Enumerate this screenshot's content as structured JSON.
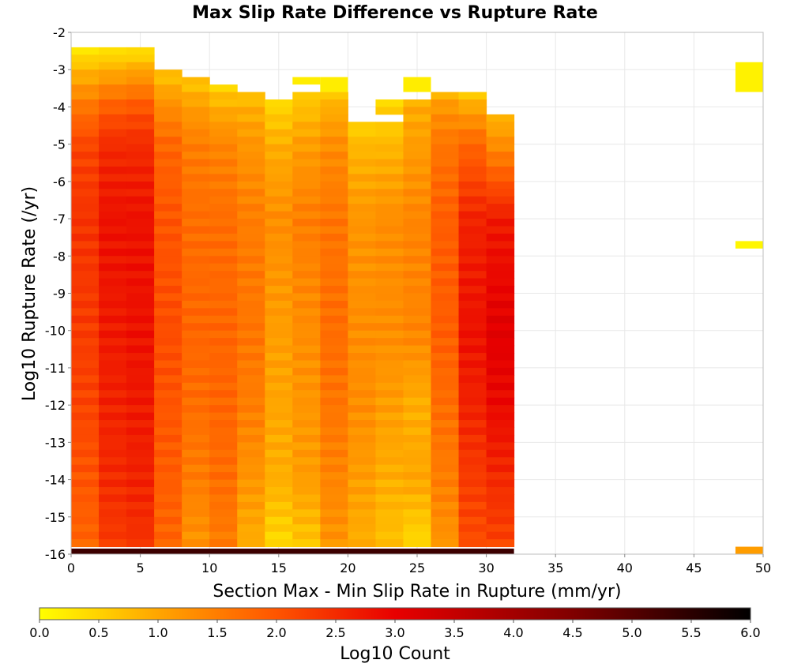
{
  "chart_data": {
    "type": "heatmap",
    "title": "Max Slip Rate Difference vs Rupture Rate",
    "xlabel": "Section Max - Min Slip Rate in Rupture (mm/yr)",
    "ylabel": "Log10 Rupture Rate (/yr)",
    "xlim": [
      0,
      50
    ],
    "ylim": [
      -16,
      -2
    ],
    "x_ticks": [
      0,
      5,
      10,
      15,
      20,
      25,
      30,
      35,
      40,
      45,
      50
    ],
    "y_ticks": [
      -16,
      -15,
      -14,
      -13,
      -12,
      -11,
      -10,
      -9,
      -8,
      -7,
      -6,
      -5,
      -4,
      -3,
      -2
    ],
    "x_bin_width": 2,
    "y_bin_height": 0.2,
    "grid": true,
    "colorbar": {
      "label": "Log10 Count",
      "range": [
        0.0,
        6.0
      ],
      "ticks": [
        "0.0",
        "0.5",
        "1.0",
        "1.5",
        "2.0",
        "2.5",
        "3.0",
        "3.5",
        "4.0",
        "4.5",
        "5.0",
        "5.5",
        "6.0"
      ],
      "colors": [
        "#ffff00",
        "#ffa500",
        "#ff5500",
        "#e80000",
        "#800000",
        "#000000"
      ]
    },
    "columns": [
      {
        "x0": 0,
        "y_top": -2.4,
        "profile": [
          [
            -2.4,
            0.15
          ],
          [
            -3,
            0.8
          ],
          [
            -4,
            1.6
          ],
          [
            -5,
            2.2
          ],
          [
            -7,
            2.4
          ],
          [
            -10,
            2.3
          ],
          [
            -12,
            2.2
          ],
          [
            -14,
            2.0
          ],
          [
            -15.8,
            1.8
          ]
        ]
      },
      {
        "x0": 2,
        "y_top": -2.4,
        "profile": [
          [
            -2.4,
            0.2
          ],
          [
            -3,
            0.9
          ],
          [
            -4,
            1.9
          ],
          [
            -5,
            2.5
          ],
          [
            -7,
            2.8
          ],
          [
            -10,
            2.7
          ],
          [
            -12,
            2.6
          ],
          [
            -14,
            2.5
          ],
          [
            -15.8,
            2.3
          ]
        ]
      },
      {
        "x0": 4,
        "y_top": -2.4,
        "profile": [
          [
            -2.4,
            0.2
          ],
          [
            -3,
            1.0
          ],
          [
            -4,
            2.0
          ],
          [
            -5,
            2.5
          ],
          [
            -7,
            2.8
          ],
          [
            -10,
            2.8
          ],
          [
            -12,
            2.7
          ],
          [
            -14,
            2.6
          ],
          [
            -15.8,
            2.4
          ]
        ]
      },
      {
        "x0": 6,
        "y_top": -3.0,
        "profile": [
          [
            -3,
            0.6
          ],
          [
            -4,
            1.3
          ],
          [
            -5,
            1.8
          ],
          [
            -7,
            2.0
          ],
          [
            -10,
            2.1
          ],
          [
            -12,
            2.0
          ],
          [
            -14,
            1.9
          ],
          [
            -15.8,
            1.8
          ]
        ]
      },
      {
        "x0": 8,
        "y_top": -3.2,
        "profile": [
          [
            -3.2,
            0.6
          ],
          [
            -4,
            1.1
          ],
          [
            -5,
            1.5
          ],
          [
            -7,
            1.7
          ],
          [
            -10,
            1.8
          ],
          [
            -12,
            1.7
          ],
          [
            -14,
            1.5
          ],
          [
            -15.8,
            1.2
          ]
        ]
      },
      {
        "x0": 10,
        "y_top": -3.2,
        "profile": [
          [
            -3.2,
            0.3
          ],
          [
            -4,
            0.9
          ],
          [
            -5,
            1.4
          ],
          [
            -7,
            1.7
          ],
          [
            -10,
            1.8
          ],
          [
            -12,
            1.8
          ],
          [
            -14,
            1.7
          ],
          [
            -15.8,
            1.5
          ]
        ]
      },
      {
        "x0": 12,
        "y_top": -3.6,
        "profile": [
          [
            -3.6,
            0.6
          ],
          [
            -4,
            0.9
          ],
          [
            -5,
            1.2
          ],
          [
            -7,
            1.5
          ],
          [
            -10,
            1.6
          ],
          [
            -12,
            1.5
          ],
          [
            -14,
            1.2
          ],
          [
            -15.8,
            0.9
          ]
        ]
      },
      {
        "x0": 14,
        "y_top": -3.8,
        "profile": [
          [
            -3.8,
            0.3
          ],
          [
            -4,
            0.5
          ],
          [
            -5,
            0.9
          ],
          [
            -7,
            1.3
          ],
          [
            -10,
            1.1
          ],
          [
            -12,
            1.0
          ],
          [
            -14,
            0.9
          ],
          [
            -15.8,
            0.4
          ]
        ]
      },
      {
        "x0": 16,
        "y_top": -3.6,
        "profile": [
          [
            -3.6,
            0.6
          ],
          [
            -4,
            0.7
          ],
          [
            -5,
            1.1
          ],
          [
            -7,
            1.5
          ],
          [
            -10,
            1.3
          ],
          [
            -12,
            1.2
          ],
          [
            -14,
            1.1
          ],
          [
            -15.8,
            0.6
          ]
        ]
      },
      {
        "x0": 18,
        "y_top": -3.6,
        "profile": [
          [
            -3.6,
            0.6
          ],
          [
            -4,
            0.9
          ],
          [
            -5,
            1.3
          ],
          [
            -7,
            1.6
          ],
          [
            -10,
            1.7
          ],
          [
            -12,
            1.6
          ],
          [
            -14,
            1.4
          ],
          [
            -15.8,
            1.2
          ]
        ]
      },
      {
        "x0": 20,
        "y_top": -4.2,
        "profile": [
          [
            -4.2,
            0.3
          ],
          [
            -5,
            0.8
          ],
          [
            -7,
            1.2
          ],
          [
            -10,
            1.3
          ],
          [
            -12,
            1.3
          ],
          [
            -14,
            1.1
          ],
          [
            -15.8,
            0.9
          ]
        ]
      },
      {
        "x0": 22,
        "y_top": -3.8,
        "profile": [
          [
            -3.8,
            0.5
          ],
          [
            -4.4,
            0.5
          ],
          [
            -5,
            0.8
          ],
          [
            -7,
            1.3
          ],
          [
            -10,
            1.3
          ],
          [
            -12,
            1.1
          ],
          [
            -14,
            0.9
          ],
          [
            -15.8,
            0.7
          ]
        ]
      },
      {
        "x0": 24,
        "y_top": -3.8,
        "profile": [
          [
            -3.8,
            0.9
          ],
          [
            -5,
            1.1
          ],
          [
            -7,
            1.4
          ],
          [
            -10,
            1.4
          ],
          [
            -12,
            0.9
          ],
          [
            -14,
            1.0
          ],
          [
            -15.8,
            0.4
          ]
        ]
      },
      {
        "x0": 26,
        "y_top": -3.6,
        "profile": [
          [
            -3.6,
            0.8
          ],
          [
            -4,
            1.2
          ],
          [
            -5,
            1.6
          ],
          [
            -7,
            1.9
          ],
          [
            -10,
            1.9
          ],
          [
            -12,
            1.7
          ],
          [
            -14,
            1.5
          ],
          [
            -15.8,
            1.2
          ]
        ]
      },
      {
        "x0": 28,
        "y_top": -3.6,
        "profile": [
          [
            -3.6,
            0.5
          ],
          [
            -4,
            1.0
          ],
          [
            -5,
            1.8
          ],
          [
            -7,
            2.6
          ],
          [
            -10,
            2.8
          ],
          [
            -12,
            2.6
          ],
          [
            -14,
            2.3
          ],
          [
            -15.8,
            2.1
          ]
        ]
      },
      {
        "x0": 30,
        "y_top": -4.2,
        "profile": [
          [
            -4.2,
            0.8
          ],
          [
            -5,
            1.3
          ],
          [
            -6,
            2.0
          ],
          [
            -7,
            2.7
          ],
          [
            -10,
            3.1
          ],
          [
            -12,
            2.9
          ],
          [
            -14,
            2.5
          ],
          [
            -15.8,
            2.2
          ]
        ]
      }
    ],
    "bottom_row": {
      "y0": -16,
      "y1": -15.85,
      "x0": 0,
      "x1": 32,
      "value": 5.3
    },
    "isolated_cells": [
      {
        "x0": 16,
        "y0": -3.4,
        "y1": -3.2,
        "value": 0.2
      },
      {
        "x0": 18,
        "y0": -3.6,
        "y1": -3.2,
        "value": 0.2
      },
      {
        "x0": 24,
        "y0": -3.6,
        "y1": -3.2,
        "value": 0.2
      },
      {
        "x0": 48,
        "y0": -3.6,
        "y1": -2.8,
        "value": 0.15
      },
      {
        "x0": 48,
        "y0": -7.8,
        "y1": -7.6,
        "value": 0.1
      },
      {
        "x0": 48,
        "y0": -16,
        "y1": -15.8,
        "value": 1.1
      }
    ],
    "holes": [
      {
        "x0": 10,
        "y0": -3.4,
        "y1": -3.2
      },
      {
        "x0": 12,
        "y0": -3.4,
        "y1": -3.0
      },
      {
        "x0": 20,
        "y0": -4.4,
        "y1": -3.6
      },
      {
        "x0": 22,
        "y0": -4.4,
        "y1": -4.2
      },
      {
        "x0": 24,
        "y0": -3.8,
        "y1": -3.6
      }
    ]
  }
}
